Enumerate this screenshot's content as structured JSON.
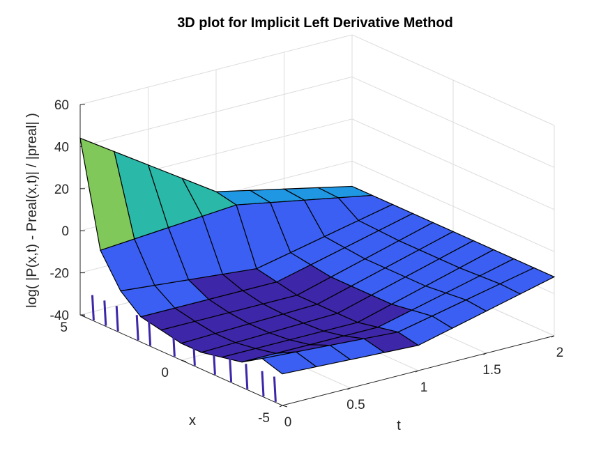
{
  "chart_data": {
    "type": "surface3d",
    "title": "3D plot for Implicit Left Derivative Method",
    "xlabel": "t",
    "ylabel": "x",
    "zlabel": "log( |P(x,t) - Preal(x,t)| / |preal| )",
    "t_range": [
      0,
      2
    ],
    "x_range": [
      -5,
      5
    ],
    "z_range": [
      -40,
      60
    ],
    "t_ticks": [
      {
        "value": 0,
        "label": "0"
      },
      {
        "value": 0.5,
        "label": "0.5"
      },
      {
        "value": 1,
        "label": "1"
      },
      {
        "value": 1.5,
        "label": "1.5"
      },
      {
        "value": 2,
        "label": "2"
      }
    ],
    "x_ticks": [
      {
        "value": 5,
        "label": "5"
      },
      {
        "value": 0,
        "label": "0"
      },
      {
        "value": -5,
        "label": "-5"
      }
    ],
    "z_ticks": [
      {
        "value": 60,
        "label": "60"
      },
      {
        "value": 40,
        "label": "40"
      },
      {
        "value": 20,
        "label": "20"
      },
      {
        "value": 0,
        "label": "0"
      },
      {
        "value": -20,
        "label": "-20"
      },
      {
        "value": -40,
        "label": "-40"
      }
    ],
    "grid": true,
    "colormap": "parula",
    "edge_color": "#000000",
    "surface_profile": {
      "t_values": [
        0,
        0.25,
        0.5,
        0.75,
        1.0,
        1.25,
        1.5,
        1.75,
        2.0
      ],
      "x_values": [
        -5,
        -4,
        -3,
        -2,
        -1,
        0,
        1,
        2,
        3,
        4,
        5
      ],
      "z_at_t0": [
        -25,
        -22,
        -28,
        -30,
        -32,
        -32,
        -30,
        -28,
        -20,
        -5,
        44
      ],
      "z_at_t_mid": [
        -28,
        -26,
        -28,
        -30,
        -30,
        -30,
        -30,
        -28,
        -26,
        0,
        2
      ],
      "z_at_t2": [
        -12,
        -12,
        -12,
        -12,
        -12,
        -12,
        -12,
        -12,
        -12,
        -12,
        -12
      ]
    }
  }
}
